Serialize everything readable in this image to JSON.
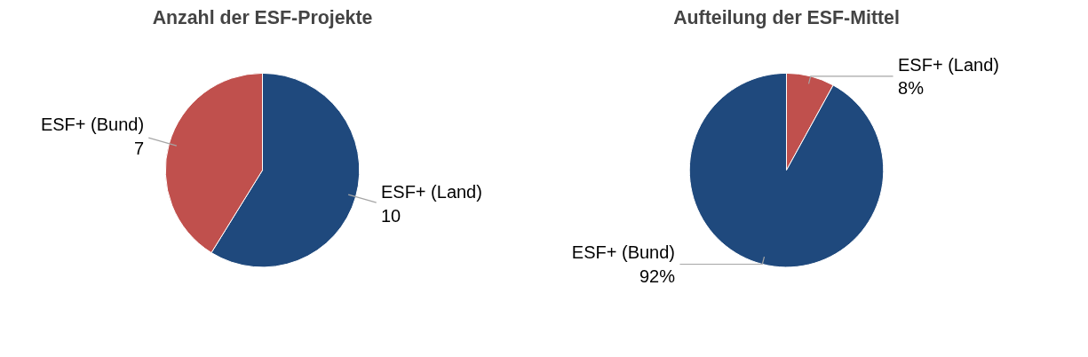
{
  "chart_data": [
    {
      "type": "pie",
      "title": "Anzahl der ESF-Projekte",
      "categories": [
        "ESF+ (Land)",
        "ESF+ (Bund)"
      ],
      "values": [
        10,
        7
      ],
      "colors": [
        "#1f497d",
        "#c0504d"
      ],
      "data_labels": true
    },
    {
      "type": "pie",
      "title": "Aufteilung der ESF-Mittel",
      "categories": [
        "ESF+ (Land)",
        "ESF+ (Bund)"
      ],
      "values": [
        8,
        92
      ],
      "colors": [
        "#c0504d",
        "#1f497d"
      ],
      "value_labels": [
        "8%",
        "92%"
      ]
    }
  ]
}
